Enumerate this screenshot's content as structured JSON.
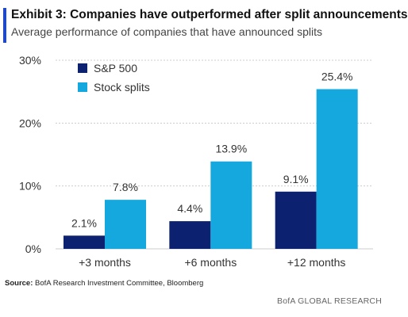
{
  "header": {
    "title": "Exhibit 3: Companies have outperformed after split announcements",
    "subtitle": "Average performance of companies that have announced splits"
  },
  "footer": {
    "source_label": "Source:",
    "source_text": "BofA Research Investment Committee, Bloomberg",
    "brand": "BofA GLOBAL RESEARCH"
  },
  "colors": {
    "sp500": "#0c2270",
    "splits": "#14a8df",
    "grid": "#cccccc",
    "accent": "#1f49c9"
  },
  "chart_data": {
    "type": "bar",
    "categories": [
      "+3 months",
      "+6 months",
      "+12 months"
    ],
    "series": [
      {
        "name": "S&P 500",
        "values": [
          2.1,
          4.4,
          9.1
        ],
        "labels": [
          "2.1%",
          "4.4%",
          "9.1%"
        ]
      },
      {
        "name": "Stock splits",
        "values": [
          7.8,
          13.9,
          25.4
        ],
        "labels": [
          "7.8%",
          "13.9%",
          "25.4%"
        ]
      }
    ],
    "ylim": [
      0,
      30
    ],
    "yticks": [
      0,
      10,
      20,
      30
    ],
    "ytick_labels": [
      "0%",
      "10%",
      "20%",
      "30%"
    ],
    "grid": true,
    "legend": "top-left"
  }
}
